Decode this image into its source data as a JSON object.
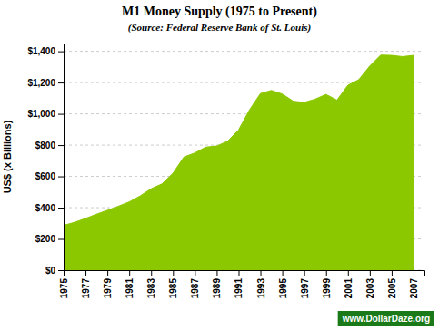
{
  "chart_data": {
    "type": "area",
    "title": "M1 Money Supply (1975 to Present)",
    "subtitle": "(Source: Federal Reserve Bank of St. Louis)",
    "ylabel": "US$ (x Billions)",
    "annotations": [
      "www.DollarDaze.org"
    ],
    "color": "#8bc800",
    "grid": true,
    "x": [
      1975,
      1976,
      1977,
      1978,
      1979,
      1980,
      1981,
      1982,
      1983,
      1984,
      1985,
      1986,
      1987,
      1988,
      1989,
      1990,
      1991,
      1992,
      1993,
      1994,
      1995,
      1996,
      1997,
      1998,
      1999,
      2000,
      2001,
      2002,
      2003,
      2004,
      2005,
      2006,
      2007
    ],
    "values": [
      287,
      306,
      331,
      358,
      383,
      409,
      437,
      475,
      521,
      552,
      620,
      724,
      750,
      787,
      794,
      825,
      897,
      1025,
      1130,
      1150,
      1127,
      1081,
      1073,
      1094,
      1124,
      1088,
      1183,
      1219,
      1306,
      1376,
      1374,
      1366,
      1374
    ],
    "xlim": [
      1975,
      2008
    ],
    "xticks": [
      1975,
      1977,
      1979,
      1981,
      1983,
      1985,
      1987,
      1989,
      1991,
      1993,
      1995,
      1997,
      1999,
      2001,
      2003,
      2005,
      2007
    ],
    "ylim": [
      0,
      1450
    ],
    "yticks": [
      {
        "value": 0,
        "label": "$0"
      },
      {
        "value": 200,
        "label": "$200"
      },
      {
        "value": 400,
        "label": "$400"
      },
      {
        "value": 600,
        "label": "$600"
      },
      {
        "value": 800,
        "label": "$800"
      },
      {
        "value": 1000,
        "label": "$1,000"
      },
      {
        "value": 1200,
        "label": "$1,200"
      },
      {
        "value": 1400,
        "label": "$1,400"
      }
    ]
  }
}
